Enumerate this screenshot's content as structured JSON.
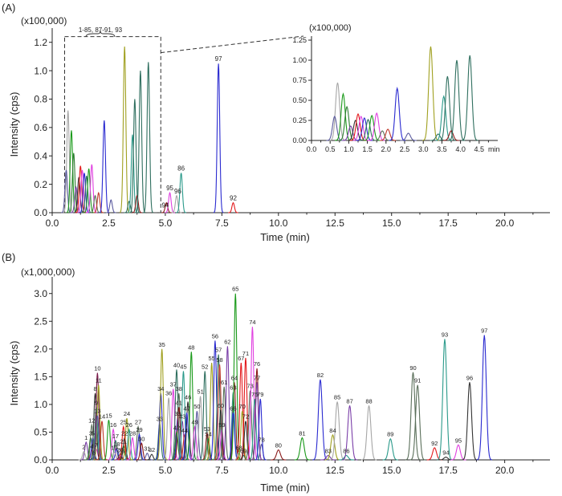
{
  "chart_data": [
    {
      "id": "A",
      "type": "line",
      "panel_label": "(A)",
      "multiplier_label": "(x100,000)",
      "xlabel": "Time (min)",
      "ylabel": "Intensity (cps)",
      "xlim": [
        0,
        22.0
      ],
      "ylim": [
        0,
        1.3
      ],
      "xticks": [
        0.0,
        2.5,
        5.0,
        7.5,
        10.0,
        12.5,
        15.0,
        17.5,
        20.0
      ],
      "xtick_labels": [
        "0.0",
        "2.5",
        "5.0",
        "7.5",
        "10.0",
        "12.5",
        "15.0",
        "17.5",
        "20.0"
      ],
      "yticks": [
        0.0,
        0.2,
        0.4,
        0.6,
        0.8,
        1.0,
        1.2
      ],
      "ytick_labels": [
        "0.0",
        "0.2",
        "0.4",
        "0.6",
        "0.8",
        "1.0",
        "1.2"
      ],
      "zoom_box": {
        "x_range": [
          0.55,
          4.8
        ],
        "y_top": 1.24,
        "label": "1-85, 87-91, 93"
      },
      "peaks": [
        {
          "rt": 0.7,
          "h": 0.72,
          "color": "#a6a6a6"
        },
        {
          "rt": 0.62,
          "h": 0.3,
          "color": "#5a5a9e"
        },
        {
          "rt": 0.85,
          "h": 0.58,
          "color": "#1a9a1a"
        },
        {
          "rt": 0.95,
          "h": 0.42,
          "color": "#2e7d32"
        },
        {
          "rt": 1.05,
          "h": 0.18,
          "color": "#7a3ea8"
        },
        {
          "rt": 1.18,
          "h": 0.25,
          "color": "#333333"
        },
        {
          "rt": 1.25,
          "h": 0.33,
          "color": "#e31a1c"
        },
        {
          "rt": 1.33,
          "h": 0.3,
          "color": "#e040e0"
        },
        {
          "rt": 1.42,
          "h": 0.28,
          "color": "#2a2ad0"
        },
        {
          "rt": 1.52,
          "h": 0.26,
          "color": "#2f6f5f"
        },
        {
          "rt": 1.62,
          "h": 0.31,
          "color": "#1a9a1a"
        },
        {
          "rt": 1.75,
          "h": 0.34,
          "color": "#e040e0"
        },
        {
          "rt": 1.9,
          "h": 0.12,
          "color": "#5a6f5a"
        },
        {
          "rt": 2.05,
          "h": 0.14,
          "color": "#c0392b"
        },
        {
          "rt": 2.3,
          "h": 0.65,
          "color": "#2a2ad0"
        },
        {
          "rt": 2.6,
          "h": 0.09,
          "color": "#5a5a9e"
        },
        {
          "rt": 3.2,
          "h": 1.17,
          "color": "#a0a020"
        },
        {
          "rt": 3.4,
          "h": 0.08,
          "color": "#2f6f5f"
        },
        {
          "rt": 3.55,
          "h": 0.55,
          "color": "#2a9a8a"
        },
        {
          "rt": 3.65,
          "h": 0.8,
          "color": "#2f6f5f"
        },
        {
          "rt": 3.75,
          "h": 0.12,
          "color": "#8b1a1a"
        },
        {
          "rt": 3.9,
          "h": 1.0,
          "color": "#2f6f5f"
        },
        {
          "rt": 4.25,
          "h": 1.06,
          "color": "#2f6f5f"
        },
        {
          "rt": 5.05,
          "h": 0.07,
          "color": "#8b1a1a"
        },
        {
          "rt": 5.2,
          "h": 0.14,
          "color": "#e040e0"
        },
        {
          "rt": 5.5,
          "h": 0.12,
          "color": "#a6a6a6"
        },
        {
          "rt": 5.7,
          "h": 0.28,
          "color": "#2a9a8a"
        },
        {
          "rt": 7.35,
          "h": 1.05,
          "color": "#2a2ad0"
        },
        {
          "rt": 8.0,
          "h": 0.07,
          "color": "#e31a1c"
        }
      ],
      "labels": [
        {
          "text": "97",
          "rt": 7.35,
          "h": 1.05
        },
        {
          "text": "86",
          "rt": 5.7,
          "h": 0.28
        },
        {
          "text": "95",
          "rt": 5.2,
          "h": 0.14
        },
        {
          "text": "96",
          "rt": 5.55,
          "h": 0.12
        },
        {
          "text": "94",
          "rt": 5.0,
          "h": 0.02
        },
        {
          "text": "92",
          "rt": 8.0,
          "h": 0.07
        }
      ],
      "inset": {
        "multiplier_label": "(x100,000)",
        "xlim": [
          0,
          5.0
        ],
        "ylim": [
          0,
          1.3
        ],
        "xticks": [
          0.0,
          0.5,
          1.0,
          1.5,
          2.0,
          2.5,
          3.0,
          3.5,
          4.0,
          4.5
        ],
        "xtick_labels": [
          "0.0",
          "0.5",
          "1.0",
          "1.5",
          "2.0",
          "2.5",
          "3.0",
          "3.5",
          "4.0",
          "4.5"
        ],
        "x_unit": "min",
        "yticks": [
          0.0,
          0.25,
          0.5,
          0.75,
          1.0,
          1.25
        ],
        "ytick_labels": [
          "0.00",
          "0.25",
          "0.50",
          "0.75",
          "1.00",
          "1.25"
        ]
      }
    },
    {
      "id": "B",
      "type": "line",
      "panel_label": "(B)",
      "multiplier_label": "(x1,000,000)",
      "xlabel": "Time (min)",
      "ylabel": "Intensity (cps)",
      "xlim": [
        0,
        22.0
      ],
      "ylim": [
        0,
        3.3
      ],
      "xticks": [
        0.0,
        2.5,
        5.0,
        7.5,
        10.0,
        12.5,
        15.0,
        17.5,
        20.0
      ],
      "xtick_labels": [
        "0.0",
        "2.5",
        "5.0",
        "7.5",
        "10.0",
        "12.5",
        "15.0",
        "17.5",
        "20.0"
      ],
      "yticks": [
        0.0,
        0.5,
        1.0,
        1.5,
        2.0,
        2.5,
        3.0
      ],
      "ytick_labels": [
        "0.0",
        "0.5",
        "1.0",
        "1.5",
        "2.0",
        "2.5",
        "3.0"
      ],
      "peaks": [
        {
          "n": "1",
          "rt": 1.5,
          "h": 0.32,
          "color": "#7a3ea8"
        },
        {
          "n": "2",
          "rt": 1.4,
          "h": 0.15,
          "color": "#a6a6a6"
        },
        {
          "n": "3",
          "rt": 1.7,
          "h": 0.4,
          "color": "#2e7d32"
        },
        {
          "n": "4",
          "rt": 1.75,
          "h": 0.17,
          "color": "#e31a1c"
        },
        {
          "n": "5",
          "rt": 1.8,
          "h": 0.4,
          "color": "#2a2ad0"
        },
        {
          "n": "6",
          "rt": 1.85,
          "h": 0.05,
          "color": "#333333"
        },
        {
          "n": "7",
          "rt": 1.95,
          "h": 0.19,
          "color": "#e040e0"
        },
        {
          "n": "8",
          "rt": 1.9,
          "h": 1.2,
          "color": "#333333"
        },
        {
          "n": "9",
          "rt": 1.95,
          "h": 0.95,
          "color": "#2a9a8a"
        },
        {
          "n": "10",
          "rt": 2.0,
          "h": 1.57,
          "color": "#7a1a4a"
        },
        {
          "n": "11",
          "rt": 2.05,
          "h": 1.35,
          "color": "#a0a020"
        },
        {
          "n": "12",
          "rt": 1.75,
          "h": 0.63,
          "color": "#5a6f5a"
        },
        {
          "n": "13",
          "rt": 2.0,
          "h": 0.8,
          "color": "#5a5a9e"
        },
        {
          "n": "14",
          "rt": 2.2,
          "h": 0.7,
          "color": "#c0392b"
        },
        {
          "n": "15",
          "rt": 2.5,
          "h": 0.72,
          "color": "#1a9a1a"
        },
        {
          "n": "16",
          "rt": 2.7,
          "h": 0.55,
          "color": "#e040e0"
        },
        {
          "n": "17",
          "rt": 2.8,
          "h": 0.35,
          "color": "#2f6f5f"
        },
        {
          "n": "18",
          "rt": 2.85,
          "h": 0.2,
          "color": "#2a2ad0"
        },
        {
          "n": "19",
          "rt": 2.75,
          "h": 0.14,
          "color": "#a6a6a6"
        },
        {
          "n": "20",
          "rt": 3.0,
          "h": 0.1,
          "color": "#8b1a1a"
        },
        {
          "n": "21",
          "rt": 3.15,
          "h": 0.25,
          "color": "#2e7d32"
        },
        {
          "n": "22",
          "rt": 3.2,
          "h": 0.4,
          "color": "#333333"
        },
        {
          "n": "23",
          "rt": 3.05,
          "h": 0.08,
          "color": "#7a3ea8"
        },
        {
          "n": "24",
          "rt": 3.3,
          "h": 0.75,
          "color": "#a0a020"
        },
        {
          "n": "25",
          "rt": 3.15,
          "h": 0.6,
          "color": "#e31a1c"
        },
        {
          "n": "26",
          "rt": 3.4,
          "h": 0.55,
          "color": "#2a9a8a"
        },
        {
          "n": "27",
          "rt": 3.8,
          "h": 0.6,
          "color": "#5a6f5a"
        },
        {
          "n": "28",
          "rt": 3.55,
          "h": 0.4,
          "color": "#e040e0"
        },
        {
          "n": "29",
          "rt": 3.85,
          "h": 0.46,
          "color": "#2a2ad0"
        },
        {
          "n": "30",
          "rt": 3.95,
          "h": 0.3,
          "color": "#8b1a1a"
        },
        {
          "n": "31",
          "rt": 4.2,
          "h": 0.12,
          "color": "#5a5a9e"
        },
        {
          "n": "32",
          "rt": 4.4,
          "h": 0.1,
          "color": "#333333"
        },
        {
          "n": "33",
          "rt": 4.75,
          "h": 0.66,
          "color": "#2f6f5f"
        },
        {
          "n": "34",
          "rt": 4.8,
          "h": 1.2,
          "color": "#2a2ad0"
        },
        {
          "n": "35",
          "rt": 4.85,
          "h": 2.0,
          "color": "#a0a020"
        },
        {
          "n": "36",
          "rt": 5.15,
          "h": 1.12,
          "color": "#a6a6a6"
        },
        {
          "n": "37",
          "rt": 5.35,
          "h": 1.28,
          "color": "#e040e0"
        },
        {
          "n": "38",
          "rt": 5.6,
          "h": 1.2,
          "color": "#5a6f5a"
        },
        {
          "n": "39",
          "rt": 5.55,
          "h": 0.75,
          "color": "#2a2ad0"
        },
        {
          "n": "40",
          "rt": 5.5,
          "h": 1.63,
          "color": "#2f6f5f"
        },
        {
          "n": "41",
          "rt": 5.6,
          "h": 0.95,
          "color": "#8b1a1a"
        },
        {
          "n": "42",
          "rt": 5.5,
          "h": 0.5,
          "color": "#2e7d32"
        },
        {
          "n": "43",
          "rt": 5.75,
          "h": 0.7,
          "color": "#7a3ea8"
        },
        {
          "n": "44",
          "rt": 5.85,
          "h": 0.45,
          "color": "#c0392b"
        },
        {
          "n": "45",
          "rt": 5.8,
          "h": 1.6,
          "color": "#2a9a8a"
        },
        {
          "n": "46",
          "rt": 6.0,
          "h": 1.05,
          "color": "#333333"
        },
        {
          "n": "47",
          "rt": 5.95,
          "h": 0.85,
          "color": "#2a2ad0"
        },
        {
          "n": "48",
          "rt": 6.15,
          "h": 1.95,
          "color": "#1a9a1a"
        },
        {
          "n": "49",
          "rt": 6.3,
          "h": 0.6,
          "color": "#e040e0"
        },
        {
          "n": "50",
          "rt": 6.4,
          "h": 0.88,
          "color": "#5a5a9e"
        },
        {
          "n": "51",
          "rt": 6.55,
          "h": 1.15,
          "color": "#a6a6a6"
        },
        {
          "n": "52",
          "rt": 6.75,
          "h": 1.6,
          "color": "#2f6f5f"
        },
        {
          "n": "53",
          "rt": 6.85,
          "h": 0.48,
          "color": "#8b1a1a"
        },
        {
          "n": "54",
          "rt": 6.9,
          "h": 0.38,
          "color": "#2e7d32"
        },
        {
          "n": "55",
          "rt": 7.05,
          "h": 1.75,
          "color": "#a0a020"
        },
        {
          "n": "56",
          "rt": 7.2,
          "h": 2.15,
          "color": "#2a2ad0"
        },
        {
          "n": "57",
          "rt": 7.35,
          "h": 1.9,
          "color": "#2f6f5f"
        },
        {
          "n": "58",
          "rt": 7.4,
          "h": 1.72,
          "color": "#c0392b"
        },
        {
          "n": "59",
          "rt": 7.5,
          "h": 0.55,
          "color": "#e040e0"
        },
        {
          "n": "60",
          "rt": 7.45,
          "h": 0.9,
          "color": "#333333"
        },
        {
          "n": "61",
          "rt": 7.6,
          "h": 1.32,
          "color": "#5a6f5a"
        },
        {
          "n": "62",
          "rt": 7.75,
          "h": 2.05,
          "color": "#7a3ea8"
        },
        {
          "n": "63",
          "rt": 8.0,
          "h": 1.22,
          "color": "#2a9a8a"
        },
        {
          "n": "64",
          "rt": 8.05,
          "h": 1.4,
          "color": "#8b1a1a"
        },
        {
          "n": "65",
          "rt": 8.1,
          "h": 3.0,
          "color": "#1a9a1a"
        },
        {
          "n": "66",
          "rt": 8.0,
          "h": 0.85,
          "color": "#2a2ad0"
        },
        {
          "n": "67",
          "rt": 8.35,
          "h": 1.75,
          "color": "#e31a1c"
        },
        {
          "n": "68",
          "rt": 8.25,
          "h": 0.14,
          "color": "#a6a6a6"
        },
        {
          "n": "69",
          "rt": 8.45,
          "h": 0.08,
          "color": "#2f6f5f"
        },
        {
          "n": "70",
          "rt": 8.4,
          "h": 0.88,
          "color": "#a0a020"
        },
        {
          "n": "71",
          "rt": 8.55,
          "h": 1.84,
          "color": "#e31a1c"
        },
        {
          "n": "72",
          "rt": 8.55,
          "h": 0.7,
          "color": "#333333"
        },
        {
          "n": "73",
          "rt": 8.75,
          "h": 1.25,
          "color": "#5a6f5a"
        },
        {
          "n": "74",
          "rt": 8.85,
          "h": 2.4,
          "color": "#e040e0"
        },
        {
          "n": "75",
          "rt": 8.95,
          "h": 1.1,
          "color": "#2a9a8a"
        },
        {
          "n": "76",
          "rt": 9.05,
          "h": 1.65,
          "color": "#8b1a1a"
        },
        {
          "n": "77",
          "rt": 9.05,
          "h": 1.4,
          "color": "#7a3ea8"
        },
        {
          "n": "78",
          "rt": 9.25,
          "h": 0.28,
          "color": "#5a5a9e"
        },
        {
          "n": "79",
          "rt": 9.2,
          "h": 1.1,
          "color": "#2a2ad0"
        },
        {
          "n": "80",
          "rt": 10.0,
          "h": 0.18,
          "color": "#8b1a1a"
        },
        {
          "n": "81",
          "rt": 11.05,
          "h": 0.4,
          "color": "#1a9a1a"
        },
        {
          "n": "82",
          "rt": 11.85,
          "h": 1.45,
          "color": "#2a2ad0"
        },
        {
          "n": "83",
          "rt": 12.2,
          "h": 0.08,
          "color": "#7a3ea8"
        },
        {
          "n": "84",
          "rt": 12.4,
          "h": 0.45,
          "color": "#a0a020"
        },
        {
          "n": "85",
          "rt": 12.6,
          "h": 1.05,
          "color": "#a6a6a6"
        },
        {
          "n": "86",
          "rt": 13.0,
          "h": 0.08,
          "color": "#2a9a8a"
        },
        {
          "n": "87",
          "rt": 13.15,
          "h": 0.98,
          "color": "#7a3ea8"
        },
        {
          "n": "88",
          "rt": 14.0,
          "h": 0.98,
          "color": "#a6a6a6"
        },
        {
          "n": "89",
          "rt": 14.95,
          "h": 0.38,
          "color": "#2a9a8a"
        },
        {
          "n": "90",
          "rt": 15.95,
          "h": 1.58,
          "color": "#5a6f5a"
        },
        {
          "n": "91",
          "rt": 16.15,
          "h": 1.35,
          "color": "#5a6f5a"
        },
        {
          "n": "92",
          "rt": 16.9,
          "h": 0.22,
          "color": "#e31a1c"
        },
        {
          "n": "93",
          "rt": 17.35,
          "h": 2.18,
          "color": "#2a9a8a"
        },
        {
          "n": "94",
          "rt": 17.4,
          "h": 0.05,
          "color": "#333333"
        },
        {
          "n": "95",
          "rt": 17.95,
          "h": 0.27,
          "color": "#e040e0"
        },
        {
          "n": "96",
          "rt": 18.45,
          "h": 1.4,
          "color": "#333333"
        },
        {
          "n": "97",
          "rt": 19.1,
          "h": 2.25,
          "color": "#2a2ad0"
        }
      ]
    }
  ]
}
